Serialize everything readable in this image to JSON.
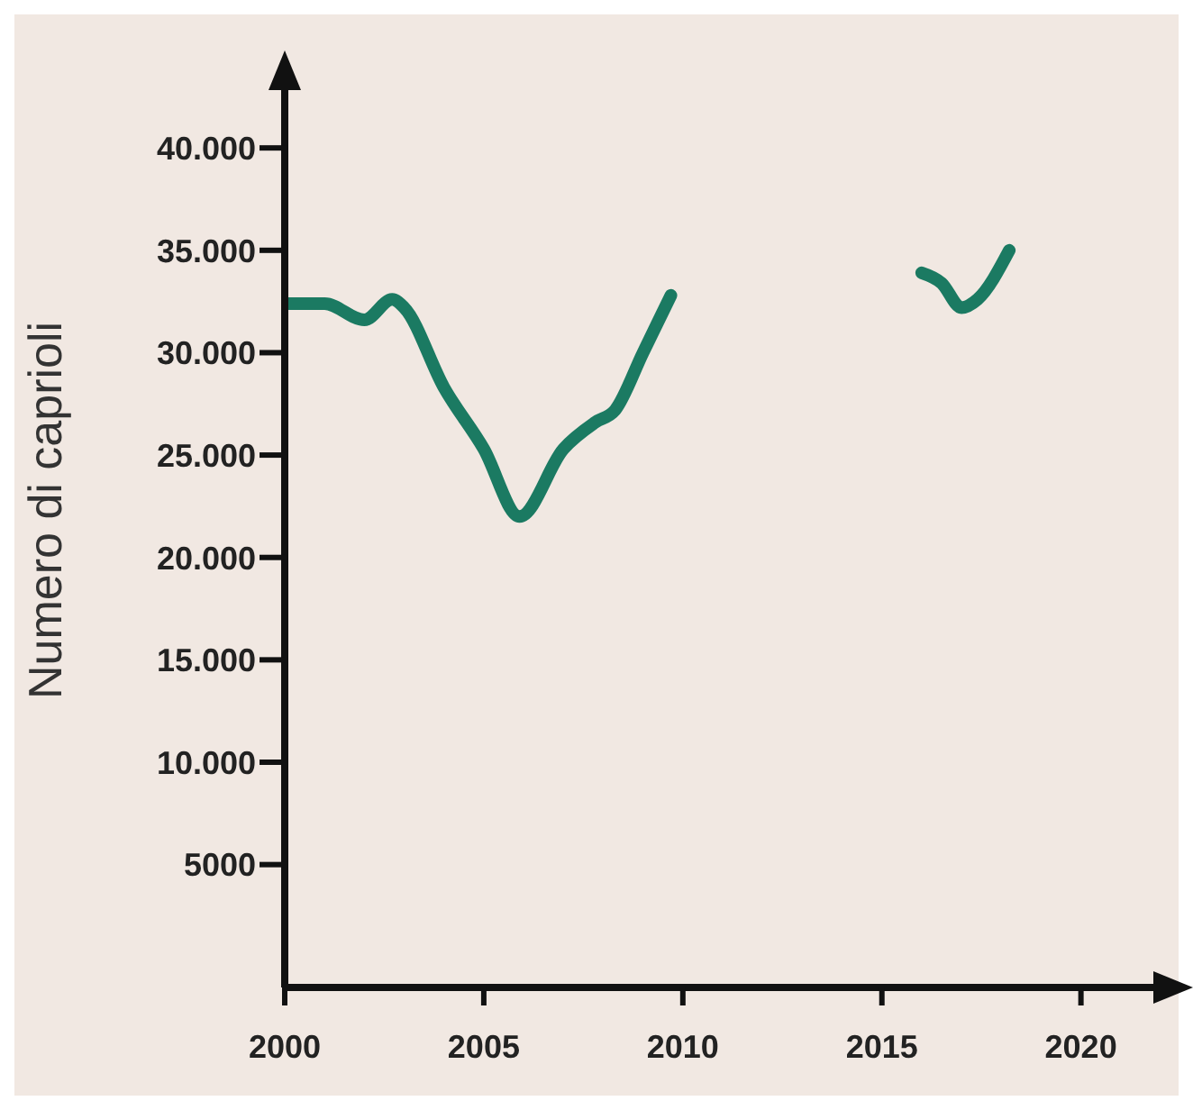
{
  "chart_data": {
    "type": "line",
    "ylabel": "Numero di caprioli",
    "x": [
      2000,
      2001,
      2002,
      2002.7,
      2003,
      2004,
      2005,
      2005.9,
      2007,
      2007.8,
      2008.3,
      2009,
      2009.7,
      2013,
      2016,
      2016.5,
      2017,
      2017.4,
      2018.2
    ],
    "series": [
      {
        "color": "#1b7a62",
        "values": [
          32400,
          32400,
          31600,
          32600,
          32200,
          28300,
          25300,
          22000,
          25300,
          26600,
          27200,
          30000,
          32800,
          null,
          33900,
          33400,
          32200,
          32600,
          35000
        ]
      }
    ],
    "xlim": [
      2000,
      2022
    ],
    "xticks": [
      2000,
      2005,
      2010,
      2015,
      2020
    ],
    "ylim": [
      -1000,
      43000
    ],
    "yticks": [
      5000,
      {
        "value": 10000,
        "label": "10.000"
      },
      {
        "value": 15000,
        "label": "15.000"
      },
      {
        "value": 20000,
        "label": "20.000"
      },
      {
        "value": 25000,
        "label": "25.000"
      },
      {
        "value": 30000,
        "label": "30.000"
      },
      {
        "value": 35000,
        "label": "35.000"
      },
      {
        "value": 40000,
        "label": "40.000"
      }
    ],
    "grid": false,
    "legend": false,
    "marker": "none",
    "line_style": "solid"
  }
}
